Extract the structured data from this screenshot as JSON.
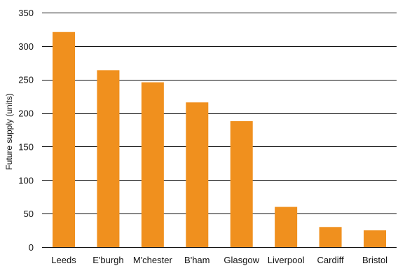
{
  "chart_data": {
    "type": "bar",
    "categories": [
      "Leeds",
      "E'burgh",
      "M'chester",
      "B'ham",
      "Glasgow",
      "Liverpool",
      "Cardiff",
      "Bristol"
    ],
    "values": [
      321,
      264,
      246,
      216,
      188,
      60,
      30,
      25
    ],
    "ylabel": "Future supply (units)",
    "ylim": [
      0,
      350
    ],
    "yticks": [
      0,
      50,
      100,
      150,
      200,
      250,
      300,
      350
    ],
    "grid": true,
    "bar_color": "#F0901E",
    "legend": "none"
  }
}
